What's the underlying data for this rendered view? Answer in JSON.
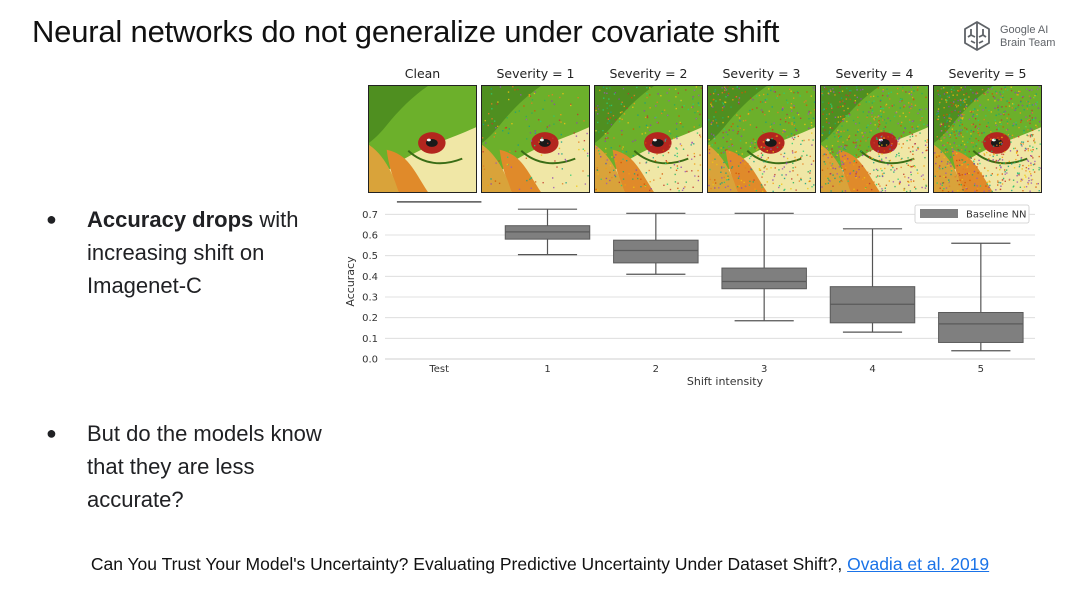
{
  "slide": {
    "title": "Neural networks do not generalize under covariate shift",
    "logo": {
      "line1": "Google AI",
      "line2": "Brain Team"
    }
  },
  "bullets": [
    {
      "bold": "Accuracy drops",
      "rest": " with increasing shift on Imagenet-C"
    },
    {
      "bold": "",
      "rest": "But do the models know that they are less accurate?"
    }
  ],
  "thumbnails": [
    {
      "label": "Clean",
      "severity": 0
    },
    {
      "label": "Severity = 1",
      "severity": 1
    },
    {
      "label": "Severity = 2",
      "severity": 2
    },
    {
      "label": "Severity = 3",
      "severity": 3
    },
    {
      "label": "Severity = 4",
      "severity": 4
    },
    {
      "label": "Severity = 5",
      "severity": 5
    }
  ],
  "footer": {
    "text": "Can You Trust Your Model's Uncertainty? Evaluating Predictive Uncertainty Under Dataset Shift?,",
    "link": "Ovadia et al. 2019"
  },
  "chart_data": {
    "type": "box",
    "xlabel": "Shift intensity",
    "ylabel": "Accuracy",
    "ylim": [
      0.0,
      0.75
    ],
    "yticks": [
      "0.0",
      "0.1",
      "0.2",
      "0.3",
      "0.4",
      "0.5",
      "0.6",
      "0.7"
    ],
    "legend": {
      "placement": "top-right",
      "entries": [
        "Baseline NN"
      ]
    },
    "grid": "horizontal",
    "colors": {
      "box": "#7f7f7f",
      "whisker": "#555555",
      "test_line": "#555555"
    },
    "categories": [
      "Test",
      "1",
      "2",
      "3",
      "4",
      "5"
    ],
    "series": [
      {
        "name": "Baseline NN",
        "boxes": [
          {
            "category": "Test",
            "min": 0.76,
            "q1": 0.76,
            "median": 0.76,
            "q3": 0.76,
            "max": 0.76
          },
          {
            "category": "1",
            "min": 0.505,
            "q1": 0.58,
            "median": 0.615,
            "q3": 0.645,
            "max": 0.725
          },
          {
            "category": "2",
            "min": 0.41,
            "q1": 0.465,
            "median": 0.525,
            "q3": 0.575,
            "max": 0.705
          },
          {
            "category": "3",
            "min": 0.185,
            "q1": 0.34,
            "median": 0.375,
            "q3": 0.44,
            "max": 0.705
          },
          {
            "category": "4",
            "min": 0.13,
            "q1": 0.175,
            "median": 0.265,
            "q3": 0.35,
            "max": 0.63
          },
          {
            "category": "5",
            "min": 0.04,
            "q1": 0.08,
            "median": 0.17,
            "q3": 0.225,
            "max": 0.56
          }
        ]
      }
    ]
  }
}
